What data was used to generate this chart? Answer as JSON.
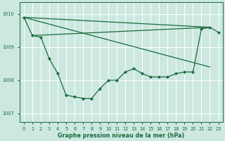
{
  "title": "Graphe pression niveau de la mer (hPa)",
  "background_color": "#cce8e0",
  "grid_color": "#ffffff",
  "line_color": "#1a6b3c",
  "marker_color": "#1a6b3c",
  "xlim": [
    -0.5,
    23.5
  ],
  "ylim": [
    1006.75,
    1010.35
  ],
  "yticks": [
    1007,
    1008,
    1009,
    1010
  ],
  "xtick_labels": [
    "0",
    "1",
    "2",
    "3",
    "4",
    "5",
    "6",
    "7",
    "8",
    "9",
    "10",
    "11",
    "12",
    "13",
    "14",
    "15",
    "16",
    "17",
    "18",
    "19",
    "20",
    "21",
    "22",
    "23"
  ],
  "curve_x": [
    0,
    1,
    2,
    3,
    4,
    5,
    6,
    7,
    8,
    9,
    10,
    11,
    12,
    13,
    14,
    15,
    16,
    17,
    18,
    19,
    20,
    21,
    22,
    23
  ],
  "curve_y": [
    1009.9,
    1009.35,
    1009.3,
    1008.65,
    1008.2,
    1007.55,
    1007.5,
    1007.45,
    1007.45,
    1007.75,
    1008.0,
    1008.0,
    1008.25,
    1008.35,
    1008.2,
    1008.1,
    1008.1,
    1008.1,
    1008.2,
    1008.25,
    1008.25,
    1009.55,
    1009.6,
    1009.45
  ],
  "trendline1_x": [
    0,
    22
  ],
  "trendline1_y": [
    1009.9,
    1009.6
  ],
  "trendline2_x": [
    0,
    22
  ],
  "trendline2_y": [
    1009.9,
    1008.4
  ],
  "trendline3_x": [
    1,
    22
  ],
  "trendline3_y": [
    1009.35,
    1009.6
  ],
  "figsize": [
    3.2,
    2.0
  ],
  "dpi": 100
}
